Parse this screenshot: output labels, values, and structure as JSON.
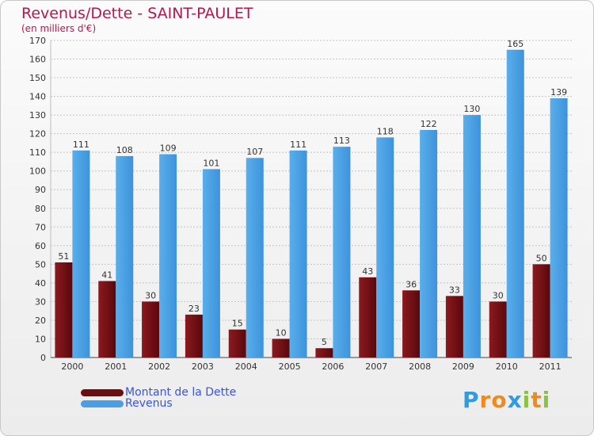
{
  "title": "Revenus/Dette - SAINT-PAULET",
  "subtitle": "(en milliers d'€)",
  "logo": {
    "text": "Proxiti",
    "letters": [
      "P",
      "r",
      "o",
      "x",
      "i",
      "t",
      "i"
    ],
    "colors": [
      "#2f9be0",
      "#f08a1c",
      "#f08a1c",
      "#2f9be0",
      "#8ac43f",
      "#f08a1c",
      "#8ac43f"
    ]
  },
  "legend": [
    {
      "name": "Montant de la Dette",
      "color": "#6b0e12"
    },
    {
      "name": "Revenus",
      "color": "#4a9fe4"
    }
  ],
  "chart_data": {
    "type": "bar",
    "categories": [
      "2000",
      "2001",
      "2002",
      "2003",
      "2004",
      "2005",
      "2006",
      "2007",
      "2008",
      "2009",
      "2010",
      "2011"
    ],
    "series": [
      {
        "name": "Montant de la Dette",
        "values": [
          51,
          41,
          30,
          23,
          15,
          10,
          5,
          43,
          36,
          33,
          30,
          50
        ],
        "color": "#6b0e12"
      },
      {
        "name": "Revenus",
        "values": [
          111,
          108,
          109,
          101,
          107,
          111,
          113,
          118,
          122,
          130,
          165,
          139
        ],
        "color": "#4a9fe4"
      }
    ],
    "ylim": [
      0,
      170
    ],
    "yticks": [
      0,
      10,
      20,
      30,
      40,
      50,
      60,
      70,
      80,
      90,
      100,
      110,
      120,
      130,
      140,
      150,
      160,
      170
    ],
    "grid": true,
    "legend_position": "bottom-left"
  }
}
